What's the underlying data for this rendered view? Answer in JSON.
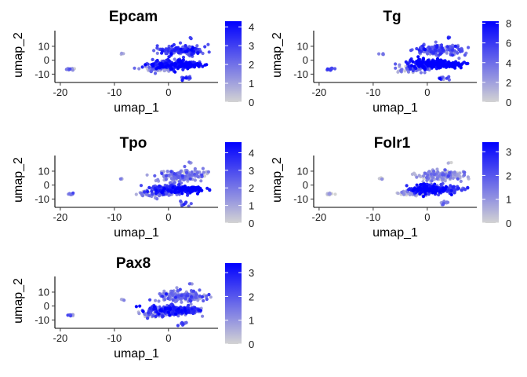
{
  "chart_data": [
    {
      "type": "scatter",
      "title": "Epcam",
      "xlabel": "umap_1",
      "ylabel": "umap_2",
      "xlim": [
        -21,
        8
      ],
      "ylim": [
        -16,
        19
      ],
      "x_ticks": [
        "-20",
        "-10",
        "0"
      ],
      "y_ticks": [
        "10",
        "0",
        "-10"
      ],
      "grid": false,
      "color_low": "#d3d3d3",
      "color_high": "#0000ff",
      "colorbar": {
        "min": 0,
        "max": 4.3,
        "ticks": [
          "4",
          "3",
          "2",
          "1",
          "0"
        ]
      },
      "clusters": [
        {
          "x": -18,
          "y": -6.5,
          "sx": 0.4,
          "sy": 0.4,
          "n": 10,
          "value": 1.2
        },
        {
          "x": -8.5,
          "y": 4.5,
          "sx": 0.3,
          "sy": 0.3,
          "n": 4,
          "value": 1.8
        },
        {
          "x": -2.5,
          "y": -6,
          "sx": 1.4,
          "sy": 1.2,
          "n": 60,
          "value": 1.2
        },
        {
          "x": 0.3,
          "y": -3,
          "sx": 2.0,
          "sy": 1.8,
          "n": 170,
          "value": 3.4
        },
        {
          "x": 2.5,
          "y": 7,
          "sx": 2.2,
          "sy": 2.0,
          "n": 150,
          "value": 2.8
        },
        {
          "x": 3.5,
          "y": -3.2,
          "sx": 1.5,
          "sy": 1.0,
          "n": 120,
          "value": 3.8
        },
        {
          "x": 3.0,
          "y": -13,
          "sx": 0.6,
          "sy": 0.8,
          "n": 12,
          "value": 2.5
        },
        {
          "x": 4.0,
          "y": 16,
          "sx": 0.2,
          "sy": 0.3,
          "n": 3,
          "value": 2.5
        }
      ]
    },
    {
      "type": "scatter",
      "title": "Tg",
      "xlabel": "umap_1",
      "ylabel": "umap_2",
      "xlim": [
        -21,
        8
      ],
      "ylim": [
        -16,
        19
      ],
      "x_ticks": [
        "-20",
        "-10",
        "0"
      ],
      "y_ticks": [
        "10",
        "0",
        "-10"
      ],
      "grid": false,
      "color_low": "#d3d3d3",
      "color_high": "#0000ff",
      "colorbar": {
        "min": 0,
        "max": 8.2,
        "ticks": [
          "8",
          "6",
          "4",
          "2",
          "0"
        ]
      },
      "clusters": [
        {
          "x": -18,
          "y": -6.5,
          "sx": 0.4,
          "sy": 0.4,
          "n": 10,
          "value": 4.5
        },
        {
          "x": -8.5,
          "y": 4.5,
          "sx": 0.3,
          "sy": 0.3,
          "n": 4,
          "value": 4.5
        },
        {
          "x": -2.5,
          "y": -6,
          "sx": 1.4,
          "sy": 1.2,
          "n": 60,
          "value": 3.0
        },
        {
          "x": 0.3,
          "y": -3,
          "sx": 2.0,
          "sy": 1.8,
          "n": 170,
          "value": 7.5
        },
        {
          "x": 2.5,
          "y": 7,
          "sx": 2.2,
          "sy": 2.0,
          "n": 150,
          "value": 4.5
        },
        {
          "x": 3.5,
          "y": -3.2,
          "sx": 1.5,
          "sy": 1.0,
          "n": 120,
          "value": 7.8
        },
        {
          "x": 3.0,
          "y": -13,
          "sx": 0.6,
          "sy": 0.8,
          "n": 12,
          "value": 5.5
        },
        {
          "x": 4.0,
          "y": 16,
          "sx": 0.2,
          "sy": 0.3,
          "n": 3,
          "value": 4.5
        }
      ]
    },
    {
      "type": "scatter",
      "title": "Tpo",
      "xlabel": "umap_1",
      "ylabel": "umap_2",
      "xlim": [
        -21,
        8
      ],
      "ylim": [
        -16,
        19
      ],
      "x_ticks": [
        "-20",
        "-10",
        "0"
      ],
      "y_ticks": [
        "10",
        "0",
        "-10"
      ],
      "grid": false,
      "color_low": "#d3d3d3",
      "color_high": "#0000ff",
      "colorbar": {
        "min": 0,
        "max": 4.6,
        "ticks": [
          "4",
          "3",
          "2",
          "1",
          "0"
        ]
      },
      "clusters": [
        {
          "x": -18,
          "y": -6.5,
          "sx": 0.4,
          "sy": 0.4,
          "n": 10,
          "value": 2.0
        },
        {
          "x": -8.5,
          "y": 4.5,
          "sx": 0.3,
          "sy": 0.3,
          "n": 4,
          "value": 2.0
        },
        {
          "x": -2.5,
          "y": -6,
          "sx": 1.4,
          "sy": 1.2,
          "n": 60,
          "value": 1.2
        },
        {
          "x": 0.3,
          "y": -3,
          "sx": 2.0,
          "sy": 1.8,
          "n": 170,
          "value": 3.0
        },
        {
          "x": 2.5,
          "y": 7,
          "sx": 2.2,
          "sy": 2.0,
          "n": 150,
          "value": 1.6
        },
        {
          "x": 3.5,
          "y": -3.2,
          "sx": 1.5,
          "sy": 1.0,
          "n": 120,
          "value": 4.3
        },
        {
          "x": 3.0,
          "y": -13,
          "sx": 0.6,
          "sy": 0.8,
          "n": 12,
          "value": 2.5
        },
        {
          "x": 4.0,
          "y": 16,
          "sx": 0.2,
          "sy": 0.3,
          "n": 3,
          "value": 1.5
        }
      ]
    },
    {
      "type": "scatter",
      "title": "Folr1",
      "xlabel": "umap_1",
      "ylabel": "umap_2",
      "xlim": [
        -21,
        8
      ],
      "ylim": [
        -16,
        19
      ],
      "x_ticks": [
        "-20",
        "-10",
        "0"
      ],
      "y_ticks": [
        "10",
        "0",
        "-10"
      ],
      "grid": false,
      "color_low": "#d3d3d3",
      "color_high": "#0000ff",
      "colorbar": {
        "min": 0,
        "max": 3.4,
        "ticks": [
          "3",
          "2",
          "1",
          "0"
        ]
      },
      "clusters": [
        {
          "x": -18,
          "y": -6.5,
          "sx": 0.4,
          "sy": 0.4,
          "n": 10,
          "value": 0.4
        },
        {
          "x": -8.5,
          "y": 4.5,
          "sx": 0.3,
          "sy": 0.3,
          "n": 4,
          "value": 0.5
        },
        {
          "x": -2.5,
          "y": -6,
          "sx": 1.4,
          "sy": 1.2,
          "n": 60,
          "value": 0.5
        },
        {
          "x": 0.3,
          "y": -3,
          "sx": 2.0,
          "sy": 1.8,
          "n": 170,
          "value": 2.9
        },
        {
          "x": 2.5,
          "y": 7,
          "sx": 2.2,
          "sy": 2.0,
          "n": 150,
          "value": 0.8
        },
        {
          "x": 3.5,
          "y": -3.2,
          "sx": 1.5,
          "sy": 1.0,
          "n": 120,
          "value": 2.2
        },
        {
          "x": 3.0,
          "y": -13,
          "sx": 0.6,
          "sy": 0.8,
          "n": 12,
          "value": 1.2
        },
        {
          "x": 4.0,
          "y": 16,
          "sx": 0.2,
          "sy": 0.3,
          "n": 3,
          "value": 0.5
        }
      ]
    },
    {
      "type": "scatter",
      "title": "Pax8",
      "xlabel": "umap_1",
      "ylabel": "umap_2",
      "xlim": [
        -21,
        8
      ],
      "ylim": [
        -16,
        19
      ],
      "x_ticks": [
        "-20",
        "-10",
        "0"
      ],
      "y_ticks": [
        "10",
        "0",
        "-10"
      ],
      "grid": false,
      "color_low": "#d3d3d3",
      "color_high": "#0000ff",
      "colorbar": {
        "min": 0,
        "max": 3.4,
        "ticks": [
          "3",
          "2",
          "1",
          "0"
        ]
      },
      "clusters": [
        {
          "x": -18,
          "y": -6.5,
          "sx": 0.4,
          "sy": 0.4,
          "n": 10,
          "value": 1.0
        },
        {
          "x": -8.5,
          "y": 4.5,
          "sx": 0.3,
          "sy": 0.3,
          "n": 4,
          "value": 1.2
        },
        {
          "x": -2.5,
          "y": -6,
          "sx": 1.4,
          "sy": 1.2,
          "n": 60,
          "value": 0.9
        },
        {
          "x": 0.3,
          "y": -3,
          "sx": 2.0,
          "sy": 1.8,
          "n": 170,
          "value": 2.5
        },
        {
          "x": 2.5,
          "y": 7,
          "sx": 2.2,
          "sy": 2.0,
          "n": 150,
          "value": 1.5
        },
        {
          "x": 3.5,
          "y": -3.2,
          "sx": 1.5,
          "sy": 1.0,
          "n": 120,
          "value": 2.0
        },
        {
          "x": 3.0,
          "y": -13,
          "sx": 0.6,
          "sy": 0.8,
          "n": 12,
          "value": 1.8
        },
        {
          "x": 4.0,
          "y": 16,
          "sx": 0.2,
          "sy": 0.3,
          "n": 3,
          "value": 1.0
        }
      ]
    }
  ]
}
